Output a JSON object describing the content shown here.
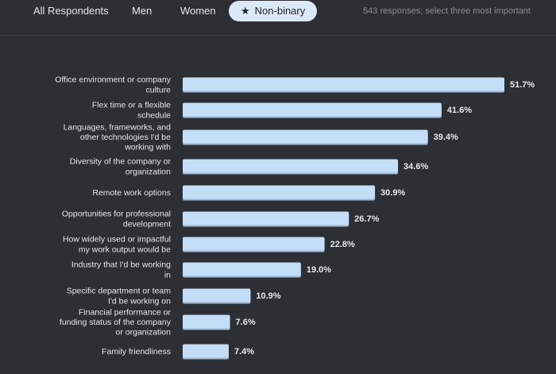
{
  "tabs": [
    {
      "label": "All Respondents",
      "active": false
    },
    {
      "label": "Men",
      "active": false
    },
    {
      "label": "Women",
      "active": false
    },
    {
      "label": "Non-binary",
      "active": true,
      "icon": "star-icon"
    }
  ],
  "note": "543 responses; select three most important",
  "colors": {
    "background": "#2d2f34",
    "bar": "#c5def8",
    "bar_shadow": "#9db7d2",
    "text": "#e6e8eb",
    "active_tab_bg": "#dbe8f7"
  },
  "chart_data": {
    "type": "bar",
    "orientation": "horizontal",
    "unit": "%",
    "xlim": [
      0,
      51.7
    ],
    "categories": [
      "Office environment or company culture",
      "Flex time or a flexible schedule",
      "Languages, frameworks, and other technologies I'd be working with",
      "Diversity of the company or organization",
      "Remote work options",
      "Opportunities for professional development",
      "How widely used or impactful my work output would be",
      "Industry that I'd be working in",
      "Specific department or team I'd be working on",
      "Financial performance or funding status of the company or organization",
      "Family friendliness"
    ],
    "values": [
      51.7,
      41.6,
      39.4,
      34.6,
      30.9,
      26.7,
      22.8,
      19.0,
      10.9,
      7.6,
      7.4
    ],
    "value_labels": [
      "51.7%",
      "41.6%",
      "39.4%",
      "34.6%",
      "30.9%",
      "26.7%",
      "22.8%",
      "19.0%",
      "10.9%",
      "7.6%",
      "7.4%"
    ]
  }
}
